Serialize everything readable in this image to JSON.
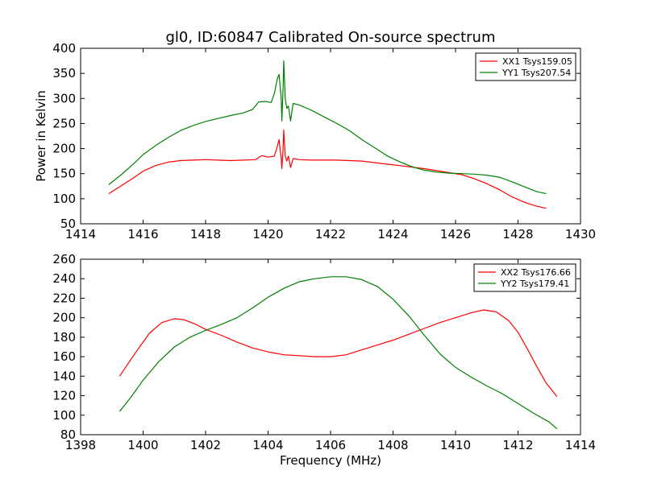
{
  "title": "gl0, ID:60847 Calibrated On-source spectrum",
  "chart_data": [
    {
      "type": "line",
      "ylabel": "Power in Kelvin",
      "xlabel": "",
      "xlim": [
        1414,
        1430
      ],
      "ylim": [
        50,
        400
      ],
      "xticks": [
        "1414",
        "1416",
        "1418",
        "1420",
        "1422",
        "1424",
        "1426",
        "1428",
        "1430"
      ],
      "yticks": [
        "50",
        "100",
        "150",
        "200",
        "250",
        "300",
        "350",
        "400"
      ],
      "grid": false,
      "legend_position": "top-right",
      "series": [
        {
          "name": "XX1 Tsys159.05",
          "color": "#ff0000",
          "x": [
            1414.9,
            1415.3,
            1415.7,
            1416.0,
            1416.4,
            1416.8,
            1417.2,
            1417.6,
            1418.0,
            1418.4,
            1418.8,
            1419.2,
            1419.6,
            1419.8,
            1420.0,
            1420.2,
            1420.3,
            1420.35,
            1420.42,
            1420.44,
            1420.48,
            1420.5,
            1420.55,
            1420.6,
            1420.65,
            1420.72,
            1420.8,
            1421.0,
            1421.4,
            1421.8,
            1422.2,
            1422.6,
            1423.0,
            1423.4,
            1423.8,
            1424.2,
            1424.6,
            1425.0,
            1425.4,
            1425.8,
            1426.2,
            1426.6,
            1427.0,
            1427.4,
            1427.8,
            1428.2,
            1428.6,
            1428.9
          ],
          "y": [
            110,
            126,
            142,
            155,
            166,
            173,
            176,
            177,
            178,
            177,
            176,
            177,
            178,
            186,
            183,
            185,
            205,
            218,
            180,
            160,
            200,
            237,
            185,
            175,
            185,
            162,
            180,
            178,
            177,
            177,
            177,
            176,
            175,
            172,
            169,
            166,
            163,
            160,
            156,
            152,
            148,
            140,
            130,
            118,
            104,
            93,
            85,
            81
          ]
        },
        {
          "name": "YY1 Tsys207.54",
          "color": "#008000",
          "x": [
            1414.9,
            1415.3,
            1415.7,
            1416.0,
            1416.4,
            1416.8,
            1417.2,
            1417.6,
            1418.0,
            1418.4,
            1418.8,
            1419.2,
            1419.5,
            1419.7,
            1419.9,
            1420.1,
            1420.2,
            1420.3,
            1420.35,
            1420.42,
            1420.44,
            1420.48,
            1420.5,
            1420.55,
            1420.6,
            1420.65,
            1420.72,
            1420.8,
            1421.0,
            1421.4,
            1421.8,
            1422.2,
            1422.6,
            1423.0,
            1423.4,
            1423.8,
            1424.2,
            1424.6,
            1425.0,
            1425.4,
            1425.8,
            1426.2,
            1426.6,
            1427.0,
            1427.4,
            1427.8,
            1428.2,
            1428.6,
            1428.9
          ],
          "y": [
            128,
            148,
            170,
            188,
            206,
            222,
            236,
            246,
            254,
            260,
            266,
            271,
            278,
            293,
            294,
            292,
            310,
            340,
            348,
            300,
            255,
            320,
            375,
            300,
            280,
            285,
            255,
            290,
            287,
            276,
            263,
            250,
            236,
            218,
            202,
            186,
            174,
            164,
            157,
            153,
            151,
            150,
            149,
            147,
            143,
            134,
            124,
            114,
            110
          ]
        }
      ]
    },
    {
      "type": "line",
      "xlabel": "Frequency (MHz)",
      "ylabel": "",
      "xlim": [
        1398,
        1414
      ],
      "ylim": [
        80,
        260
      ],
      "xticks": [
        "1398",
        "1400",
        "1402",
        "1404",
        "1406",
        "1408",
        "1410",
        "1412",
        "1414"
      ],
      "yticks": [
        "80",
        "100",
        "120",
        "140",
        "160",
        "180",
        "200",
        "220",
        "240",
        "260"
      ],
      "grid": false,
      "legend_position": "top-right",
      "series": [
        {
          "name": "XX2 Tsys176.66",
          "color": "#ff0000",
          "x": [
            1399.25,
            1399.5,
            1399.8,
            1400.2,
            1400.6,
            1401.0,
            1401.3,
            1401.7,
            1402.0,
            1402.5,
            1403.0,
            1403.5,
            1404.0,
            1404.5,
            1405.0,
            1405.5,
            1406.0,
            1406.5,
            1407.0,
            1407.5,
            1408.0,
            1408.5,
            1409.0,
            1409.5,
            1410.0,
            1410.5,
            1410.9,
            1411.3,
            1411.7,
            1412.0,
            1412.3,
            1412.6,
            1412.9,
            1413.25
          ],
          "y": [
            140,
            152,
            166,
            184,
            195,
            199,
            198,
            193,
            188,
            182,
            175,
            169,
            165,
            162,
            161,
            160,
            160,
            162,
            167,
            172,
            177,
            183,
            189,
            195,
            200,
            205,
            208,
            206,
            197,
            185,
            168,
            150,
            133,
            119
          ]
        },
        {
          "name": "YY2 Tsys179.41",
          "color": "#008000",
          "x": [
            1399.25,
            1399.6,
            1400.0,
            1400.5,
            1401.0,
            1401.5,
            1402.0,
            1402.5,
            1403.0,
            1403.5,
            1404.0,
            1404.5,
            1405.0,
            1405.5,
            1406.0,
            1406.5,
            1407.0,
            1407.5,
            1408.0,
            1408.5,
            1409.0,
            1409.5,
            1410.0,
            1410.5,
            1411.0,
            1411.5,
            1412.0,
            1412.5,
            1413.0,
            1413.25
          ],
          "y": [
            104,
            118,
            136,
            155,
            170,
            180,
            187,
            193,
            200,
            210,
            221,
            230,
            237,
            240,
            242,
            242,
            239,
            232,
            219,
            202,
            182,
            163,
            149,
            139,
            130,
            122,
            112,
            102,
            93,
            86
          ]
        }
      ]
    }
  ]
}
